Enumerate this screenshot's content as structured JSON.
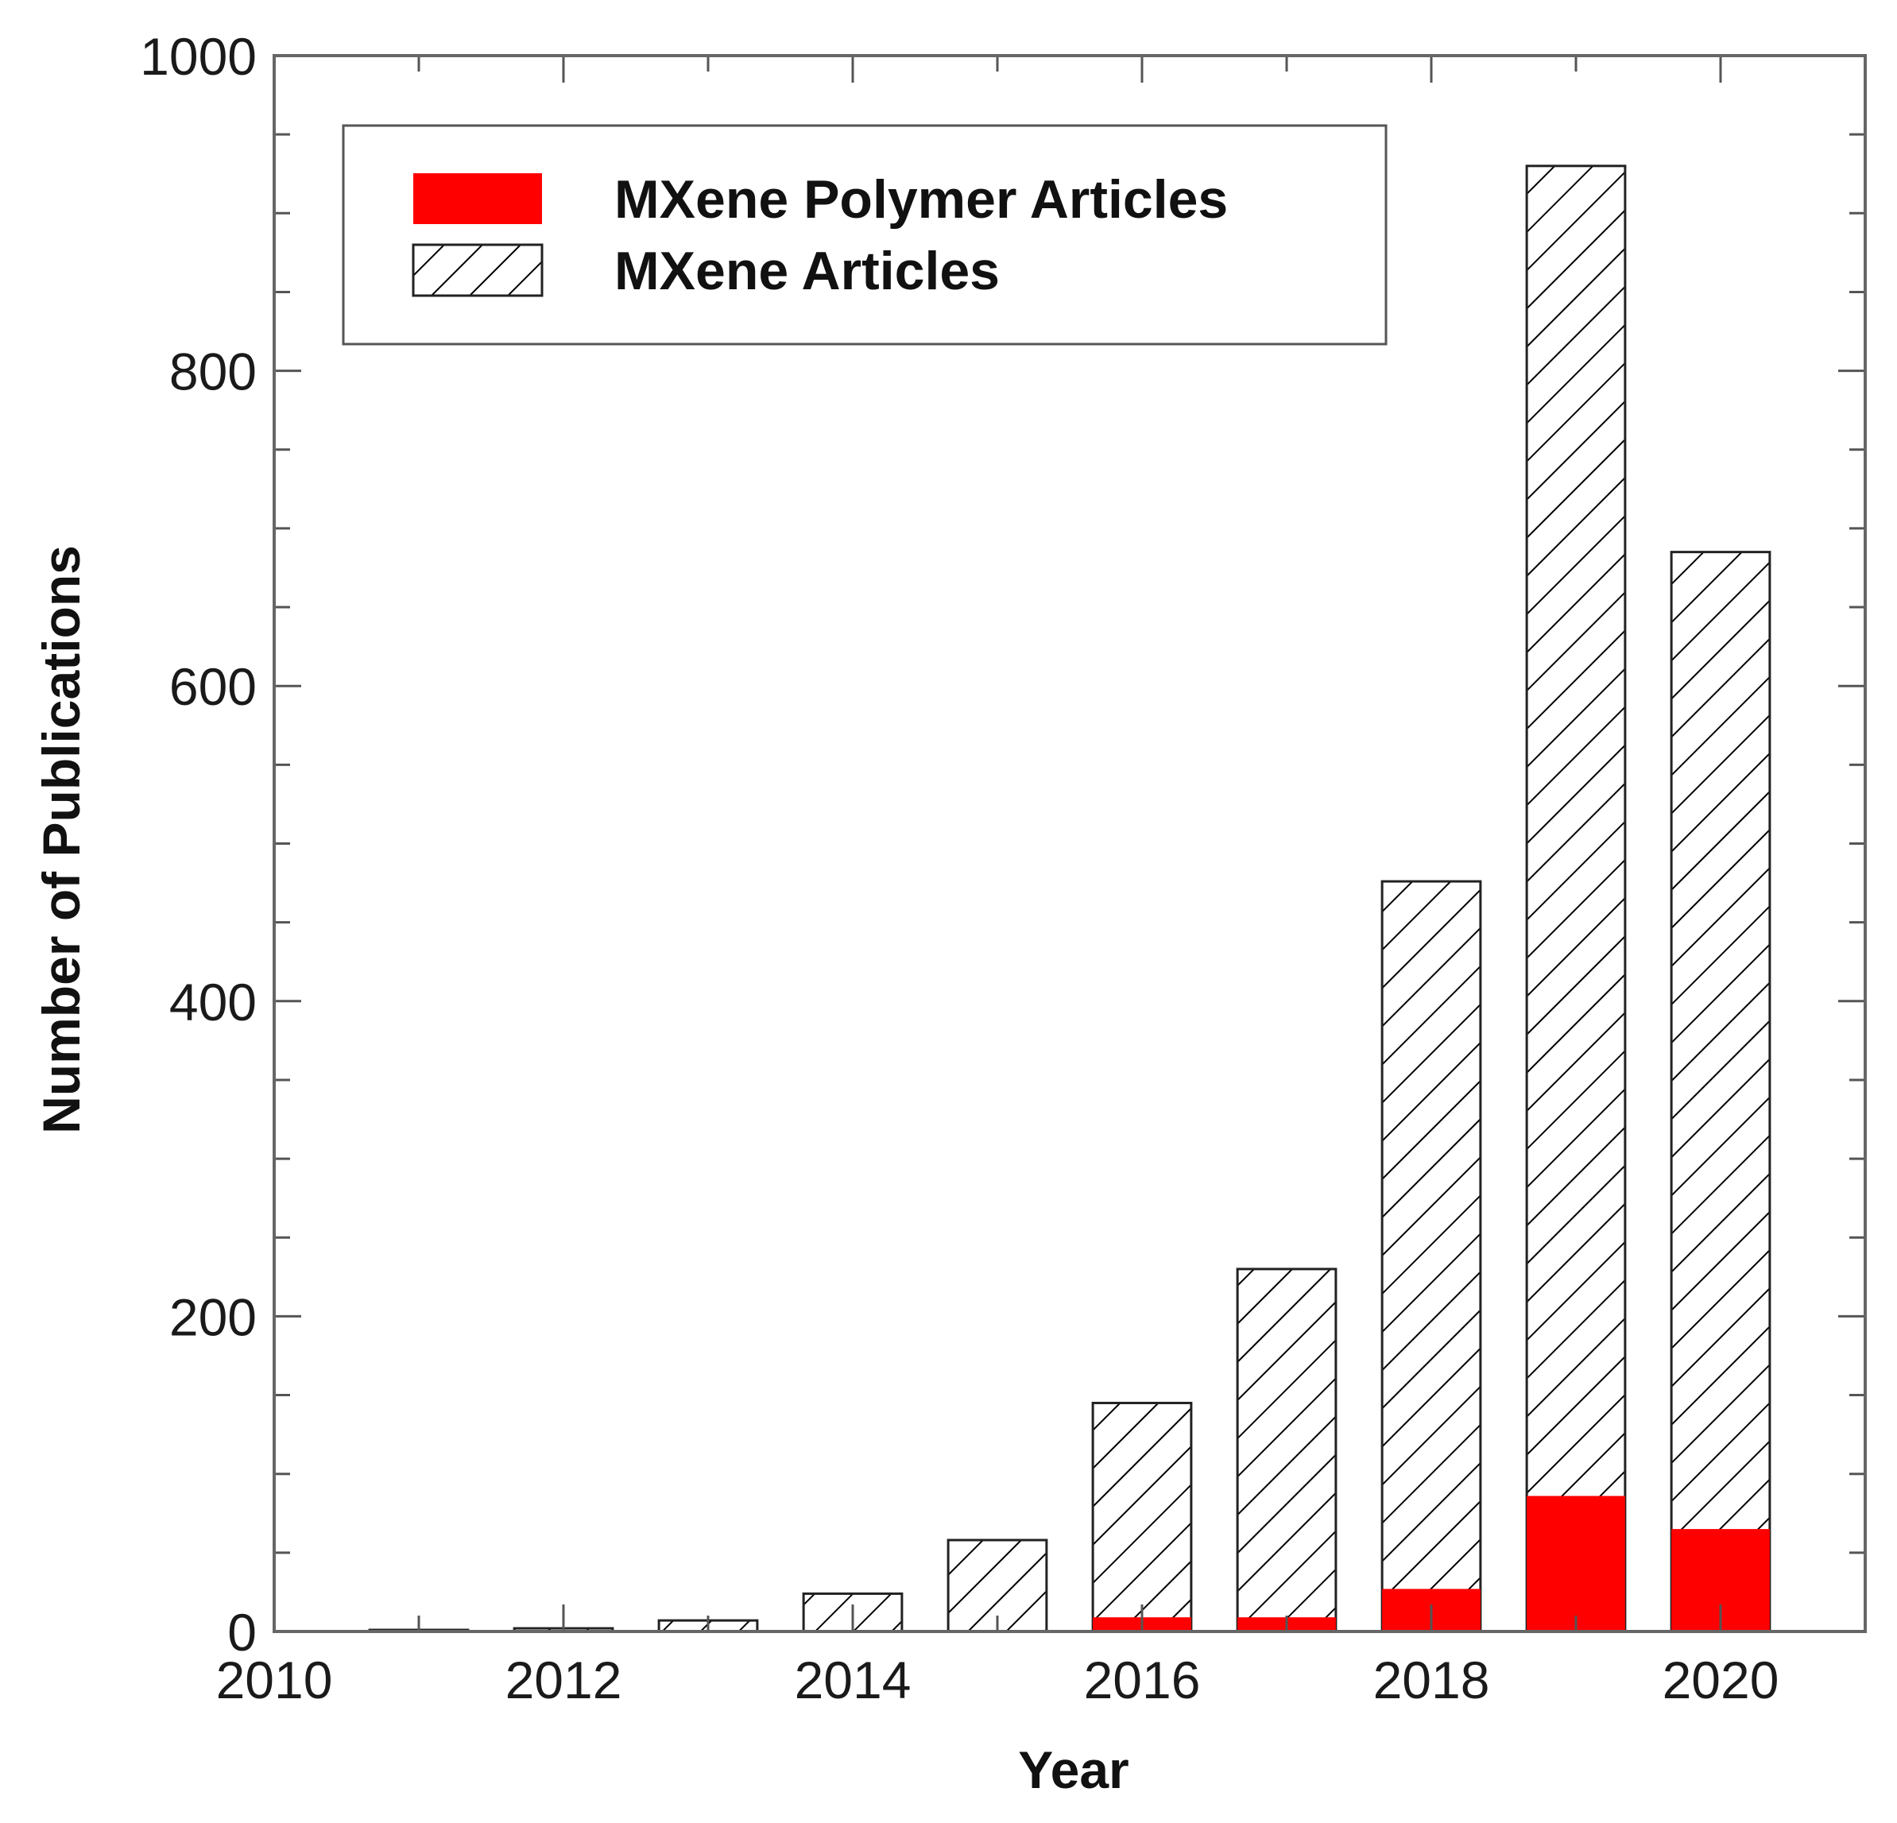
{
  "chart_data": {
    "type": "bar",
    "stacking": "overlay",
    "xlabel": "Year",
    "ylabel": "Number of Publications",
    "xlim": [
      2010,
      2021
    ],
    "ylim": [
      0,
      1000
    ],
    "x_ticks": [
      "2010",
      "2012",
      "2014",
      "2016",
      "2018",
      "2020"
    ],
    "y_ticks": [
      "0",
      "200",
      "400",
      "600",
      "800",
      "1000"
    ],
    "x_minor_step": 1,
    "y_minor_step": 50,
    "grid": false,
    "legend_position": "top-left",
    "categories": [
      2011,
      2012,
      2013,
      2014,
      2015,
      2016,
      2017,
      2018,
      2019,
      2020
    ],
    "series": [
      {
        "name": "MXene Articles",
        "values": [
          1,
          2,
          7,
          24,
          58,
          145,
          230,
          476,
          930,
          685
        ],
        "fill": "hatch",
        "color": "#000000"
      },
      {
        "name": "MXene Polymer Articles",
        "values": [
          0,
          0,
          0,
          0,
          0,
          9,
          9,
          27,
          86,
          65
        ],
        "fill": "solid",
        "color": "#ff0000"
      }
    ],
    "legend": [
      {
        "label": "MXene Polymer Articles",
        "fill": "solid",
        "color": "#ff0000"
      },
      {
        "label": "MXene Articles",
        "fill": "hatch",
        "color": "#000000"
      }
    ]
  }
}
